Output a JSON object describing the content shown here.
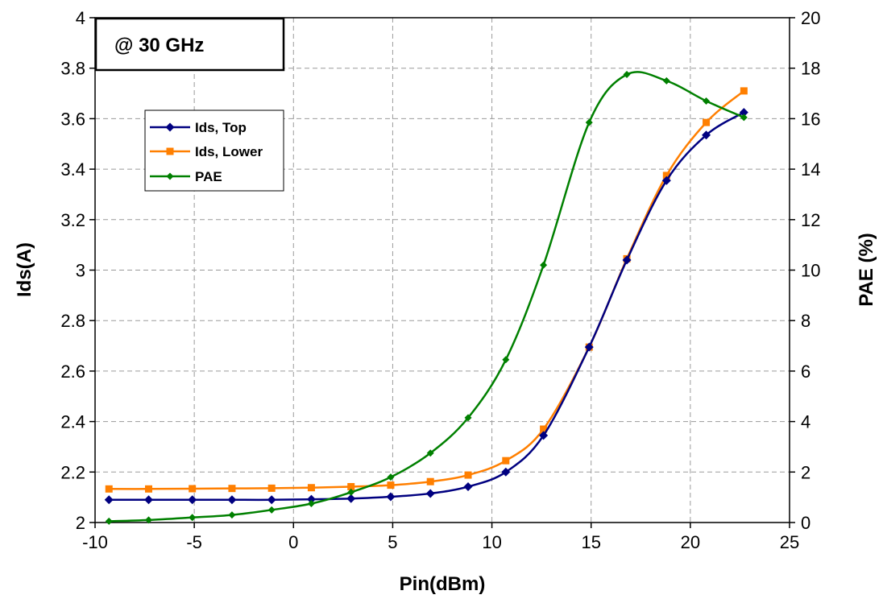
{
  "chart_data": {
    "type": "line",
    "title": "",
    "annotation": "@ 30 GHz",
    "xlabel": "Pin(dBm)",
    "ylabel": "Ids(A)",
    "y2label": "PAE (%)",
    "xlim": [
      -10,
      25
    ],
    "ylim": [
      2,
      4
    ],
    "y2lim": [
      0,
      20
    ],
    "xticks": [
      "-10",
      "-5",
      "0",
      "5",
      "10",
      "15",
      "20",
      "25"
    ],
    "yticks": [
      "2",
      "2.2",
      "2.4",
      "2.6",
      "2.8",
      "3",
      "3.2",
      "3.4",
      "3.6",
      "3.8",
      "4"
    ],
    "y2ticks": [
      "0",
      "2",
      "4",
      "6",
      "8",
      "10",
      "12",
      "14",
      "16",
      "18",
      "20"
    ],
    "grid": true,
    "legend_position": "upper-left",
    "series": [
      {
        "name": "Ids, Top",
        "axis": "left",
        "color": "#000080",
        "marker": "diamond",
        "x": [
          -9.3,
          -7.3,
          -5.1,
          -3.1,
          -1.1,
          0.9,
          2.9,
          4.9,
          6.9,
          8.8,
          10.7,
          12.6,
          14.9,
          16.8,
          18.8,
          20.8,
          22.7
        ],
        "y": [
          2.09,
          2.09,
          2.09,
          2.09,
          2.09,
          2.092,
          2.095,
          2.102,
          2.115,
          2.142,
          2.2,
          2.345,
          2.695,
          3.04,
          3.355,
          3.535,
          3.625
        ]
      },
      {
        "name": "Ids, Lower",
        "axis": "left",
        "color": "#FF7F00",
        "marker": "square",
        "x": [
          -9.3,
          -7.3,
          -5.1,
          -3.1,
          -1.1,
          0.9,
          2.9,
          4.9,
          6.9,
          8.8,
          10.7,
          12.6,
          14.9,
          16.8,
          18.8,
          20.8,
          22.7
        ],
        "y": [
          2.133,
          2.133,
          2.134,
          2.135,
          2.136,
          2.138,
          2.142,
          2.148,
          2.162,
          2.188,
          2.245,
          2.37,
          2.695,
          3.045,
          3.375,
          3.585,
          3.71
        ]
      },
      {
        "name": "PAE",
        "axis": "right",
        "color": "#008000",
        "marker": "diamond",
        "x": [
          -9.3,
          -7.3,
          -5.1,
          -3.1,
          -1.1,
          0.9,
          2.9,
          4.9,
          6.9,
          8.8,
          10.7,
          12.6,
          14.9,
          16.8,
          18.8,
          20.8,
          22.7
        ],
        "y": [
          0.05,
          0.1,
          0.2,
          0.3,
          0.5,
          0.75,
          1.2,
          1.8,
          2.75,
          4.15,
          6.45,
          10.2,
          15.85,
          17.75,
          17.5,
          16.7,
          16.05
        ]
      }
    ]
  }
}
